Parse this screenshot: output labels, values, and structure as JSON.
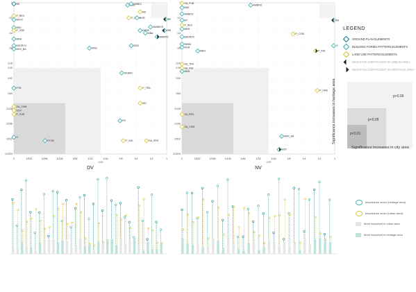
{
  "chart_data": [
    {
      "type": "scatter",
      "xlabel": "DV",
      "scale": "log2",
      "tick_labels": [
        "0",
        "1/512",
        "1/256",
        "1/128",
        "1/64",
        "1/32",
        "1/16",
        "1/8",
        "1/4",
        "1/2",
        "1"
      ],
      "y_tick_labels": [
        "1/1024",
        "1/512",
        "1/256",
        "1/128",
        "1/64",
        "1/32",
        "1/16",
        "1/8",
        "1/4",
        "1/2",
        "1"
      ],
      "sig_labels": [
        "0.01",
        "0.05"
      ],
      "points": [
        {
          "label": "BE",
          "x": 0.0005,
          "y": 0.95,
          "cls": "g"
        },
        {
          "label": "BDE",
          "x": 0.17,
          "y": 0.9,
          "cls": "b"
        },
        {
          "label": "AWBDI",
          "x": 0.2,
          "y": 0.95,
          "cls": "b"
        },
        {
          "label": "BD",
          "x": 0.3,
          "y": 0.66,
          "cls": "y"
        },
        {
          "label": "P_RES",
          "x": 0.0005,
          "y": 0.55,
          "cls": "y"
        },
        {
          "label": "BHVC",
          "x": 0.0005,
          "y": 0.46,
          "cls": "b"
        },
        {
          "label": "P_COM",
          "x": 0.18,
          "y": 0.5,
          "cls": "y"
        },
        {
          "label": "NGR",
          "x": 0.26,
          "y": 0.5,
          "cls": "b"
        },
        {
          "label": "BROVC",
          "x": 0.95,
          "y": 0.47,
          "cls": "b",
          "neg": "urban"
        },
        {
          "label": "BSD",
          "x": 0.0005,
          "y": 0.32,
          "cls": "b"
        },
        {
          "label": "P_GRE",
          "x": 0.0005,
          "y": 0.28,
          "cls": "y"
        },
        {
          "label": "NRBE",
          "x": 0.3,
          "y": 0.28,
          "cls": "b"
        },
        {
          "label": "AWBSCR",
          "x": 0.48,
          "y": 0.33,
          "cls": "b"
        },
        {
          "label": "MBA",
          "x": 0.38,
          "y": 0.25,
          "cls": "b"
        },
        {
          "label": "NRBD",
          "x": 0.9,
          "y": 0.28,
          "cls": "b",
          "neg": "urban"
        },
        {
          "label": "MBH",
          "x": 0.0005,
          "y": 0.19,
          "cls": "b"
        },
        {
          "label": "AWBPD",
          "x": 0.65,
          "y": 0.21,
          "cls": "b",
          "neg": "heritage"
        },
        {
          "label": "BSORVC",
          "x": 0.0005,
          "y": 0.14,
          "cls": "b"
        },
        {
          "label": "MAX_BA",
          "x": 0.0005,
          "y": 0.12,
          "cls": "b"
        },
        {
          "label": "MSE",
          "x": 0.03,
          "y": 0.125,
          "cls": "b"
        },
        {
          "label": "BOD",
          "x": 0.2,
          "y": 0.14,
          "cls": "b"
        },
        {
          "label": "UEBAN",
          "x": 0.13,
          "y": 0.04,
          "cls": "b"
        },
        {
          "label": "PTB",
          "x": 0.0005,
          "y": 0.02,
          "cls": "b"
        },
        {
          "label": "P_TRA",
          "x": 0.3,
          "y": 0.02,
          "cls": "y"
        },
        {
          "label": "MD",
          "x": 0.3,
          "y": 0.01,
          "cls": "y"
        },
        {
          "label": "SA_COM",
          "x": 0.0005,
          "y": 0.0086,
          "cls": "y"
        },
        {
          "label": "SCR",
          "x": 0.0005,
          "y": 0.0072,
          "cls": "y"
        },
        {
          "label": "P_PUB",
          "x": 0.0005,
          "y": 0.006,
          "cls": "y"
        },
        {
          "label": "PD",
          "x": 0.12,
          "y": 0.0045,
          "cls": "b"
        },
        {
          "label": "G",
          "x": 0.0005,
          "y": 0.0021,
          "cls": "b"
        },
        {
          "label": "PTCB",
          "x": 0.004,
          "y": 0.0018,
          "cls": "b"
        },
        {
          "label": "P_IND",
          "x": 0.14,
          "y": 0.0018,
          "cls": "y"
        },
        {
          "label": "SA_RES",
          "x": 0.4,
          "y": 0.0018,
          "cls": "y"
        }
      ]
    },
    {
      "type": "scatter",
      "xlabel": "NV",
      "scale": "log2",
      "tick_labels": [
        "0",
        "1/512",
        "1/256",
        "1/128",
        "1/64",
        "1/32",
        "1/16",
        "1/8",
        "1/4",
        "1/2",
        "1"
      ],
      "y_tick_labels": [
        "1/1024",
        "1/512",
        "1/256",
        "1/128",
        "1/64",
        "1/32",
        "1/16",
        "1/8",
        "1/4",
        "1/2",
        "1"
      ],
      "sig_labels": [
        "0.01",
        "0.05"
      ],
      "points": [
        {
          "label": "SA_PUB",
          "x": 0.0005,
          "y": 0.98,
          "cls": "y"
        },
        {
          "label": "AWBRD",
          "x": 0.022,
          "y": 0.9,
          "cls": "b"
        },
        {
          "label": "BDE",
          "x": 0.0005,
          "y": 0.8,
          "cls": "b"
        },
        {
          "label": "AWBPD",
          "x": 0.0005,
          "y": 0.6,
          "cls": "b"
        },
        {
          "label": "BT",
          "x": 0.0005,
          "y": 0.45,
          "cls": "b"
        },
        {
          "label": "MSE",
          "x": 0.95,
          "y": 0.45,
          "cls": "b",
          "neg": "urban"
        },
        {
          "label": "P_RES",
          "x": 0.0005,
          "y": 0.36,
          "cls": "y"
        },
        {
          "label": "MBH",
          "x": 0.0005,
          "y": 0.3,
          "cls": "b"
        },
        {
          "label": "P_COM",
          "x": 0.15,
          "y": 0.24,
          "cls": "y"
        },
        {
          "label": "BSORVC",
          "x": 0.0005,
          "y": 0.21,
          "cls": "b"
        },
        {
          "label": "NRBD",
          "x": 0.0005,
          "y": 0.15,
          "cls": "b"
        },
        {
          "label": "G",
          "x": 0.95,
          "y": 0.14,
          "cls": "b"
        },
        {
          "label": "NGR",
          "x": 0.0005,
          "y": 0.13,
          "cls": "b"
        },
        {
          "label": "P_IND",
          "x": 0.42,
          "y": 0.11,
          "cls": "y",
          "neg": "heritage"
        },
        {
          "label": "MBH",
          "x": 0.002,
          "y": 0.11,
          "cls": "b"
        },
        {
          "label": "SA_TRA",
          "x": 0.0005,
          "y": 0.06,
          "cls": "y"
        },
        {
          "label": "SA_IND",
          "x": 0.0005,
          "y": 0.05,
          "cls": "y"
        },
        {
          "label": "MBA",
          "x": 0.0005,
          "y": 0.043,
          "cls": "b"
        },
        {
          "label": "P_GRE",
          "x": 0.45,
          "y": 0.018,
          "cls": "y"
        },
        {
          "label": "SA_RES",
          "x": 0.0005,
          "y": 0.006,
          "cls": "y"
        },
        {
          "label": "SA_COM",
          "x": 0.0005,
          "y": 0.0034,
          "cls": "y"
        },
        {
          "label": "BOD",
          "x": 0.08,
          "y": 0.0012,
          "cls": "b",
          "neg": "heritage"
        },
        {
          "label": "MAX_BA",
          "x": 0.09,
          "y": 0.0022,
          "cls": "b"
        }
      ]
    }
  ],
  "legend": {
    "title": "LEGEND",
    "items": [
      {
        "label": "GROUND PLAN ELEMENTS",
        "color": "#1f8a94"
      },
      {
        "label": "BUILDING FORMS PATTERN ELEMENTS",
        "color": "#4ab0b5"
      },
      {
        "label": "LAND USE PATTERN ELEMENTS",
        "color": "#d8c84a"
      },
      {
        "label": "NEGATIVE COEFFICIENT IN URBAN AREA",
        "color": "#222222"
      },
      {
        "label": "NEGATIVE COEFFICIENT IN HERITAGE AREA",
        "color": "#222222"
      }
    ]
  },
  "significance": {
    "p1": "p<0.01",
    "p2": "p<0.05",
    "p3": "p>0.05",
    "y_axis": "Significance increases in heritage area",
    "x_axis": "Significance increases in city area"
  },
  "bottom_legend": {
    "items": [
      {
        "line1": "Importance score",
        "line2": "(heritage area)"
      },
      {
        "line1": "Importance score",
        "line2": "(urban area)"
      },
      {
        "line1": "More important in urban area"
      },
      {
        "line1": "More important in heritage area"
      }
    ]
  },
  "colors": {
    "teal": "#1f8a94",
    "cyan": "#4ab0b5",
    "yellow": "#d8c84a",
    "dark": "#222222"
  }
}
